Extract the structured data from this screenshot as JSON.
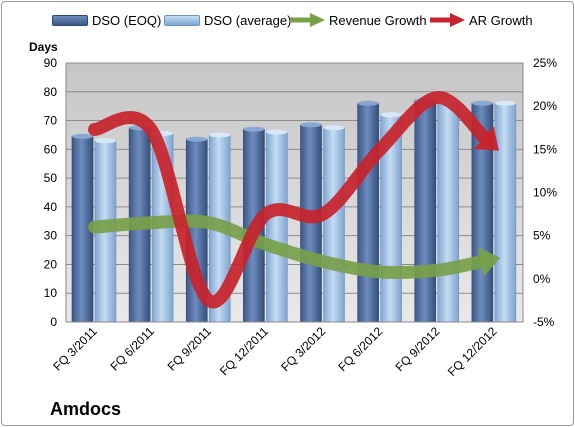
{
  "chart_data": {
    "type": "bar",
    "title": "Amdocs",
    "ylabel": "Days",
    "categories": [
      "FQ 3/2011",
      "FQ 6/2011",
      "FQ 9/2011",
      "FQ 12/2011",
      "FQ 3/2012",
      "FQ 6/2012",
      "FQ 9/2012",
      "FQ 12/2012"
    ],
    "ylim": [
      0,
      90
    ],
    "yticks": [
      0,
      10,
      20,
      30,
      40,
      50,
      60,
      70,
      80,
      90
    ],
    "y2lim": [
      -5,
      25
    ],
    "y2ticks": [
      "-5%",
      "0%",
      "5%",
      "10%",
      "15%",
      "20%",
      "25%"
    ],
    "series": [
      {
        "name": "DSO (EOQ)",
        "kind": "bar",
        "axis": "left",
        "values": [
          64.5,
          67.5,
          63.5,
          67,
          68.5,
          76,
          77,
          76
        ]
      },
      {
        "name": "DSO (average)",
        "kind": "bar",
        "axis": "left",
        "values": [
          63,
          65.5,
          65,
          66,
          67.5,
          72,
          76.5,
          76
        ]
      },
      {
        "name": "Revenue Growth",
        "kind": "arrow",
        "axis": "right",
        "values": [
          6,
          6.5,
          6.5,
          4,
          2,
          0.8,
          1,
          2.3
        ]
      },
      {
        "name": "AR Growth",
        "kind": "arrow",
        "axis": "right",
        "values": [
          17.3,
          17.2,
          -2.5,
          7.5,
          7.5,
          15,
          21,
          15.3
        ]
      }
    ],
    "grid": true,
    "legend": "top",
    "colors": {
      "bar_eoq": "#4f6fa3",
      "bar_avg": "#9dc0e8",
      "revenue": "#77a04a",
      "ar": "#c8232b",
      "plot_bg": "#c0c0c0"
    }
  }
}
